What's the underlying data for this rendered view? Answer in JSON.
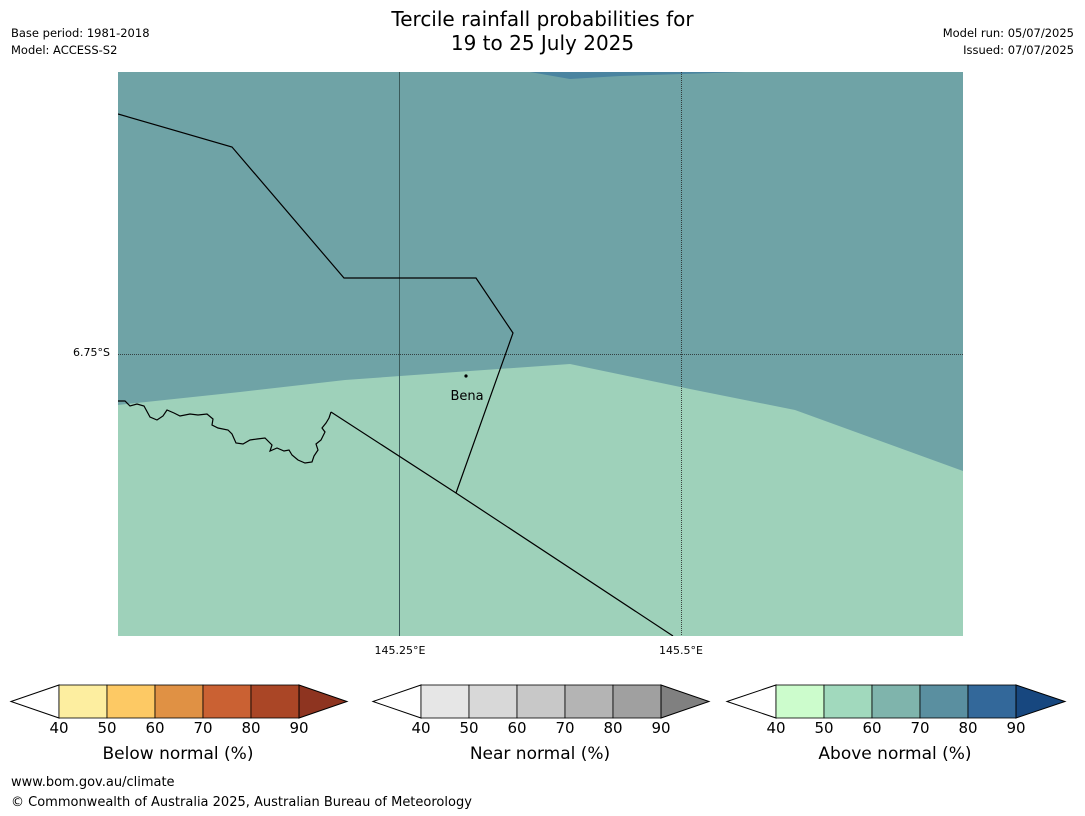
{
  "header": {
    "title_line1": "Tercile rainfall probabilities for",
    "title_line2": "19 to 25 July 2025",
    "base_period": "Base period: 1981-2018",
    "model": "Model: ACCESS-S2",
    "model_run": "Model run: 05/07/2025",
    "issued": "Issued: 07/07/2025"
  },
  "map": {
    "place_label": "Bena",
    "lat_label": "6.75°S",
    "lon_labels": [
      "145.25°E",
      "145.5°E"
    ],
    "region_colors": {
      "above_70": "#6fa3a6",
      "above_50_60": "#9ed1ba",
      "above_80_sliver": "#4a84a0"
    }
  },
  "colorbars": [
    {
      "title": "Below normal (%)",
      "ticks": [
        "40",
        "50",
        "60",
        "70",
        "80",
        "90"
      ],
      "colors": [
        "#fdeea0",
        "#fdc964",
        "#e09144",
        "#ca6133",
        "#aa4626"
      ],
      "extend_color": "#8e3420"
    },
    {
      "title": "Near normal (%)",
      "ticks": [
        "40",
        "50",
        "60",
        "70",
        "80",
        "90"
      ],
      "colors": [
        "#e6e6e6",
        "#d8d8d8",
        "#c8c8c8",
        "#b4b4b4",
        "#a0a0a0"
      ],
      "extend_color": "#808080"
    },
    {
      "title": "Above normal (%)",
      "ticks": [
        "40",
        "50",
        "60",
        "70",
        "80",
        "90"
      ],
      "colors": [
        "#ccfccc",
        "#a1d9bd",
        "#7fb4ac",
        "#5a8fa0",
        "#33689a"
      ],
      "extend_color": "#17477f"
    }
  ],
  "footer": {
    "website": "www.bom.gov.au/climate",
    "copyright": "© Commonwealth of Australia 2025, Australian Bureau of Meteorology"
  }
}
